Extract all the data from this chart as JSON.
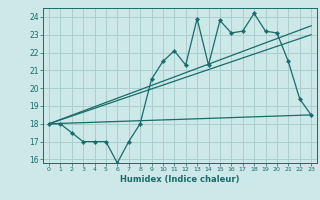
{
  "title": "",
  "xlabel": "Humidex (Indice chaleur)",
  "bg_color": "#cce8e8",
  "grid_color": "#aacfcf",
  "line_color": "#1a6b6b",
  "xlim": [
    -0.5,
    23.5
  ],
  "ylim": [
    15.8,
    24.5
  ],
  "xticks": [
    0,
    1,
    2,
    3,
    4,
    5,
    6,
    7,
    8,
    9,
    10,
    11,
    12,
    13,
    14,
    15,
    16,
    17,
    18,
    19,
    20,
    21,
    22,
    23
  ],
  "yticks": [
    16,
    17,
    18,
    19,
    20,
    21,
    22,
    23,
    24
  ],
  "main_x": [
    0,
    1,
    2,
    3,
    4,
    5,
    6,
    7,
    8,
    9,
    10,
    11,
    12,
    13,
    14,
    15,
    16,
    17,
    18,
    19,
    20,
    21,
    22,
    23
  ],
  "main_y": [
    18.0,
    18.0,
    17.5,
    17.0,
    17.0,
    17.0,
    15.8,
    17.0,
    18.0,
    20.5,
    21.5,
    22.1,
    21.3,
    23.9,
    21.3,
    23.8,
    23.1,
    23.2,
    24.2,
    23.2,
    23.1,
    21.5,
    19.4,
    18.5
  ],
  "line1_x": [
    0,
    23
  ],
  "line1_y": [
    18.0,
    23.5
  ],
  "line2_x": [
    0,
    23
  ],
  "line2_y": [
    18.0,
    18.5
  ],
  "line3_x": [
    0,
    23
  ],
  "line3_y": [
    18.0,
    23.0
  ]
}
